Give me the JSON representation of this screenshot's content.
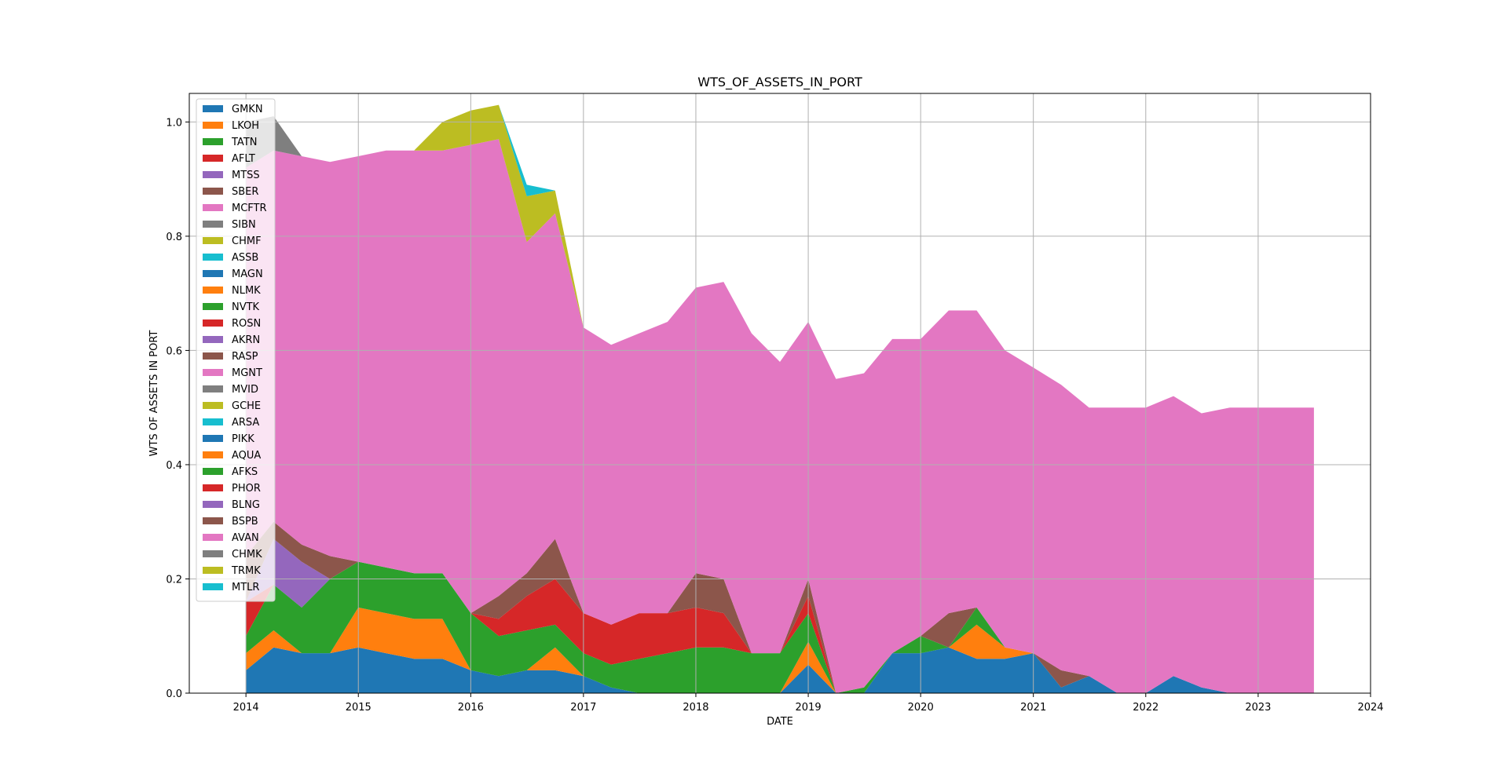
{
  "chart_data": {
    "type": "area",
    "stacked": true,
    "title": "WTS_OF_ASSETS_IN_PORT",
    "xlabel": "DATE",
    "ylabel": "WTS OF ASSETS IN PORT",
    "xlim": [
      "2013-07-01",
      "2024-01-01"
    ],
    "ylim": [
      0,
      1.05
    ],
    "x_ticks": [
      "2014",
      "2015",
      "2016",
      "2017",
      "2018",
      "2019",
      "2020",
      "2021",
      "2022",
      "2023",
      "2024"
    ],
    "y_ticks": [
      "0.0",
      "0.2",
      "0.4",
      "0.6",
      "0.8",
      "1.0"
    ],
    "grid": true,
    "legend_position": "upper-left",
    "series_names": [
      "GMKN",
      "LKOH",
      "TATN",
      "AFLT",
      "MTSS",
      "SBER",
      "MCFTR",
      "SIBN",
      "CHMF",
      "ASSB",
      "MAGN",
      "NLMK",
      "NVTK",
      "ROSN",
      "AKRN",
      "RASP",
      "MGNT",
      "MVID",
      "GCHE",
      "ARSA",
      "PIKK",
      "AQUA",
      "AFKS",
      "PHOR",
      "BLNG",
      "BSPB",
      "AVAN",
      "CHMK",
      "TRMK",
      "MTLR"
    ],
    "colors": [
      "#1f77b4",
      "#ff7f0e",
      "#2ca02c",
      "#d62728",
      "#9467bd",
      "#8c564b",
      "#e377c2",
      "#7f7f7f",
      "#bcbd22",
      "#17becf"
    ],
    "x": [
      "2014-01",
      "2014-04",
      "2014-07",
      "2014-10",
      "2015-01",
      "2015-04",
      "2015-07",
      "2015-10",
      "2016-01",
      "2016-04",
      "2016-07",
      "2016-10",
      "2017-01",
      "2017-04",
      "2017-07",
      "2017-10",
      "2018-01",
      "2018-04",
      "2018-07",
      "2018-10",
      "2019-01",
      "2019-04",
      "2019-07",
      "2019-10",
      "2020-01",
      "2020-04",
      "2020-07",
      "2020-10",
      "2021-01",
      "2021-04",
      "2021-07",
      "2021-10",
      "2022-01",
      "2022-04",
      "2022-07",
      "2022-10",
      "2023-01",
      "2023-04",
      "2023-07"
    ],
    "series": [
      {
        "name": "GMKN",
        "values": [
          0.04,
          0.08,
          0.07,
          0.07,
          0.08,
          0.07,
          0.06,
          0.06,
          0.04,
          0.03,
          0.04,
          0.04,
          0.03,
          0.01,
          0,
          0,
          0,
          0,
          0,
          0,
          0.05,
          0,
          0,
          0.07,
          0.07,
          0.08,
          0.06,
          0.06,
          0.07,
          0.01,
          0.03,
          0,
          0,
          0.03,
          0.01,
          0,
          0,
          0,
          0
        ]
      },
      {
        "name": "LKOH",
        "values": [
          0.03,
          0.03,
          0,
          0,
          0.07,
          0.07,
          0.07,
          0.07,
          0,
          0,
          0,
          0.04,
          0,
          0,
          0,
          0,
          0,
          0,
          0,
          0,
          0.04,
          0,
          0,
          0,
          0,
          0,
          0.06,
          0.02,
          0,
          0,
          0,
          0,
          0,
          0,
          0,
          0,
          0,
          0,
          0
        ]
      },
      {
        "name": "TATN",
        "values": [
          0.03,
          0.08,
          0.08,
          0.13,
          0.08,
          0.08,
          0.08,
          0.08,
          0.1,
          0.07,
          0.07,
          0.04,
          0.04,
          0.04,
          0.06,
          0.07,
          0.08,
          0.08,
          0.07,
          0.07,
          0.05,
          0,
          0.01,
          0,
          0.03,
          0,
          0.03,
          0,
          0,
          0,
          0,
          0,
          0,
          0,
          0,
          0,
          0,
          0,
          0
        ]
      },
      {
        "name": "AFLT",
        "values": [
          0.06,
          0,
          0,
          0,
          0,
          0,
          0,
          0,
          0,
          0.03,
          0.06,
          0.08,
          0.07,
          0.07,
          0.08,
          0.07,
          0.07,
          0.06,
          0,
          0,
          0.03,
          0,
          0,
          0,
          0,
          0,
          0,
          0,
          0,
          0,
          0,
          0,
          0,
          0,
          0,
          0,
          0,
          0,
          0
        ]
      },
      {
        "name": "MTSS",
        "values": [
          0,
          0.08,
          0.08,
          0,
          0,
          0,
          0,
          0,
          0,
          0,
          0,
          0,
          0,
          0,
          0,
          0,
          0,
          0,
          0,
          0,
          0,
          0,
          0,
          0,
          0,
          0,
          0,
          0,
          0,
          0,
          0,
          0,
          0,
          0,
          0,
          0,
          0,
          0,
          0
        ]
      },
      {
        "name": "SBER",
        "values": [
          0.08,
          0.03,
          0.03,
          0.04,
          0,
          0,
          0,
          0,
          0,
          0.04,
          0.04,
          0.07,
          0,
          0,
          0,
          0,
          0.06,
          0.06,
          0,
          0,
          0.03,
          0,
          0,
          0,
          0,
          0.06,
          0,
          0,
          0,
          0.03,
          0,
          0,
          0,
          0,
          0,
          0,
          0,
          0,
          0
        ]
      },
      {
        "name": "MCFTR",
        "values": [
          0.68,
          0.65,
          0.68,
          0.69,
          0.71,
          0.73,
          0.74,
          0.74,
          0.82,
          0.8,
          0.58,
          0.57,
          0.5,
          0.49,
          0.49,
          0.51,
          0.5,
          0.52,
          0.56,
          0.51,
          0.45,
          0.55,
          0.55,
          0.55,
          0.52,
          0.53,
          0.52,
          0.52,
          0.5,
          0.5,
          0.47,
          0.5,
          0.5,
          0.49,
          0.48,
          0.5,
          0.5,
          0.5,
          0.5
        ]
      },
      {
        "name": "SIBN",
        "values": [
          0.08,
          0.06,
          0,
          0,
          0,
          0,
          0,
          0,
          0,
          0,
          0,
          0,
          0,
          0,
          0,
          0,
          0,
          0,
          0,
          0,
          0,
          0,
          0,
          0,
          0,
          0,
          0,
          0,
          0,
          0,
          0,
          0,
          0,
          0,
          0,
          0,
          0,
          0,
          0
        ]
      },
      {
        "name": "CHMF",
        "values": [
          0,
          0,
          0,
          0,
          0,
          0,
          0,
          0.05,
          0.06,
          0.06,
          0.08,
          0.04,
          0,
          0,
          0,
          0,
          0,
          0,
          0,
          0,
          0,
          0,
          0,
          0,
          0,
          0,
          0,
          0,
          0,
          0,
          0,
          0,
          0,
          0,
          0,
          0,
          0,
          0,
          0
        ]
      },
      {
        "name": "ASSB",
        "values": [
          0,
          0,
          0,
          0,
          0,
          0,
          0,
          0,
          0,
          0,
          0.02,
          0,
          0,
          0,
          0,
          0,
          0,
          0,
          0,
          0,
          0,
          0,
          0,
          0,
          0,
          0,
          0,
          0,
          0,
          0,
          0,
          0,
          0,
          0,
          0,
          0,
          0,
          0,
          0
        ]
      }
    ]
  }
}
